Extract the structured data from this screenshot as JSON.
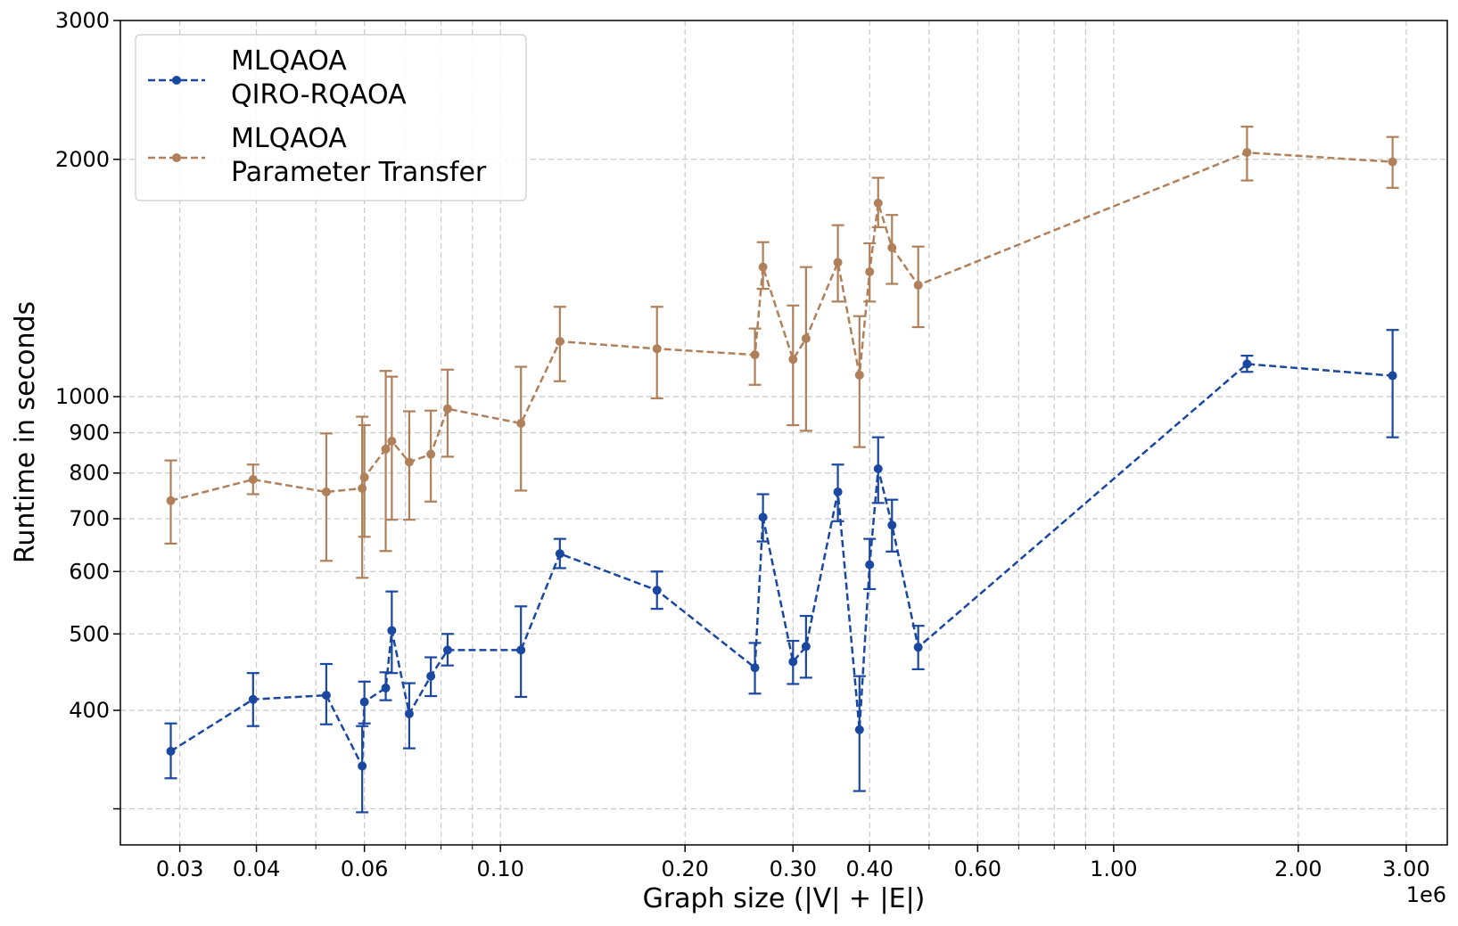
{
  "chart_data": {
    "type": "line",
    "xlabel": "Graph size (|V| + |E|)",
    "ylabel": "Runtime in seconds",
    "x_offset_label": "1e6",
    "xscale": "log",
    "yscale": "log",
    "xlim": [
      0.024,
      3.5
    ],
    "ylim": [
      270,
      3000
    ],
    "grid": true,
    "legend_position": "top-left",
    "x_ticks": [
      {
        "value": 0.03,
        "label": "0.03"
      },
      {
        "value": 0.04,
        "label": "0.04"
      },
      {
        "value": 0.06,
        "label": "0.06"
      },
      {
        "value": 0.1,
        "label": "0.10"
      },
      {
        "value": 0.2,
        "label": "0.20"
      },
      {
        "value": 0.3,
        "label": "0.30"
      },
      {
        "value": 0.4,
        "label": "0.40"
      },
      {
        "value": 0.6,
        "label": "0.60"
      },
      {
        "value": 1.0,
        "label": "1.00"
      },
      {
        "value": 2.0,
        "label": "2.00"
      },
      {
        "value": 3.0,
        "label": "3.00"
      }
    ],
    "x_minor_ticks": [
      0.05,
      0.07,
      0.08,
      0.09,
      0.5,
      0.7,
      0.8,
      0.9
    ],
    "y_ticks": [
      {
        "value": 300,
        "label": ""
      },
      {
        "value": 400,
        "label": "400"
      },
      {
        "value": 500,
        "label": "500"
      },
      {
        "value": 600,
        "label": "600"
      },
      {
        "value": 700,
        "label": "700"
      },
      {
        "value": 800,
        "label": "800"
      },
      {
        "value": 900,
        "label": "900"
      },
      {
        "value": 1000,
        "label": "1000"
      },
      {
        "value": 2000,
        "label": "2000"
      },
      {
        "value": 3000,
        "label": "3000"
      }
    ],
    "series": [
      {
        "legend_lines": [
          "MLQAOA",
          "QIRO-RQAOA"
        ],
        "color": "#1a47a0",
        "points": [
          {
            "x": 0.029,
            "y": 355,
            "lo": 328,
            "hi": 385
          },
          {
            "x": 0.0395,
            "y": 413,
            "lo": 382,
            "hi": 446
          },
          {
            "x": 0.052,
            "y": 418,
            "lo": 384,
            "hi": 458
          },
          {
            "x": 0.0595,
            "y": 340,
            "lo": 297,
            "hi": 382
          },
          {
            "x": 0.06,
            "y": 410,
            "lo": 385,
            "hi": 435
          },
          {
            "x": 0.065,
            "y": 427,
            "lo": 412,
            "hi": 447
          },
          {
            "x": 0.0665,
            "y": 505,
            "lo": 446,
            "hi": 566
          },
          {
            "x": 0.071,
            "y": 396,
            "lo": 358,
            "hi": 433
          },
          {
            "x": 0.077,
            "y": 442,
            "lo": 417,
            "hi": 467
          },
          {
            "x": 0.082,
            "y": 477,
            "lo": 456,
            "hi": 500
          },
          {
            "x": 0.108,
            "y": 477,
            "lo": 416,
            "hi": 542
          },
          {
            "x": 0.125,
            "y": 632,
            "lo": 606,
            "hi": 660
          },
          {
            "x": 0.18,
            "y": 568,
            "lo": 538,
            "hi": 600
          },
          {
            "x": 0.26,
            "y": 453,
            "lo": 420,
            "hi": 487
          },
          {
            "x": 0.268,
            "y": 703,
            "lo": 655,
            "hi": 752
          },
          {
            "x": 0.3,
            "y": 461,
            "lo": 432,
            "hi": 490
          },
          {
            "x": 0.315,
            "y": 482,
            "lo": 440,
            "hi": 527
          },
          {
            "x": 0.355,
            "y": 757,
            "lo": 695,
            "hi": 820
          },
          {
            "x": 0.385,
            "y": 378,
            "lo": 316,
            "hi": 442
          },
          {
            "x": 0.4,
            "y": 612,
            "lo": 570,
            "hi": 660
          },
          {
            "x": 0.413,
            "y": 810,
            "lo": 733,
            "hi": 888
          },
          {
            "x": 0.435,
            "y": 687,
            "lo": 636,
            "hi": 740
          },
          {
            "x": 0.48,
            "y": 481,
            "lo": 451,
            "hi": 512
          },
          {
            "x": 1.65,
            "y": 1100,
            "lo": 1075,
            "hi": 1127
          },
          {
            "x": 2.85,
            "y": 1063,
            "lo": 888,
            "hi": 1215
          }
        ]
      },
      {
        "legend_lines": [
          "MLQAOA",
          "Parameter Transfer"
        ],
        "color": "#b0805b",
        "points": [
          {
            "x": 0.029,
            "y": 738,
            "lo": 651,
            "hi": 830
          },
          {
            "x": 0.0395,
            "y": 785,
            "lo": 752,
            "hi": 820
          },
          {
            "x": 0.052,
            "y": 757,
            "lo": 619,
            "hi": 898
          },
          {
            "x": 0.0595,
            "y": 765,
            "lo": 589,
            "hi": 943
          },
          {
            "x": 0.06,
            "y": 790,
            "lo": 664,
            "hi": 920
          },
          {
            "x": 0.065,
            "y": 858,
            "lo": 637,
            "hi": 1078
          },
          {
            "x": 0.0665,
            "y": 878,
            "lo": 698,
            "hi": 1060
          },
          {
            "x": 0.071,
            "y": 826,
            "lo": 698,
            "hi": 958
          },
          {
            "x": 0.077,
            "y": 845,
            "lo": 736,
            "hi": 960
          },
          {
            "x": 0.082,
            "y": 965,
            "lo": 839,
            "hi": 1082
          },
          {
            "x": 0.108,
            "y": 925,
            "lo": 760,
            "hi": 1091
          },
          {
            "x": 0.125,
            "y": 1175,
            "lo": 1046,
            "hi": 1300
          },
          {
            "x": 0.18,
            "y": 1150,
            "lo": 995,
            "hi": 1300
          },
          {
            "x": 0.26,
            "y": 1130,
            "lo": 1035,
            "hi": 1220
          },
          {
            "x": 0.268,
            "y": 1460,
            "lo": 1370,
            "hi": 1570
          },
          {
            "x": 0.3,
            "y": 1115,
            "lo": 920,
            "hi": 1305
          },
          {
            "x": 0.315,
            "y": 1185,
            "lo": 905,
            "hi": 1460
          },
          {
            "x": 0.355,
            "y": 1480,
            "lo": 1320,
            "hi": 1650
          },
          {
            "x": 0.385,
            "y": 1065,
            "lo": 863,
            "hi": 1265
          },
          {
            "x": 0.4,
            "y": 1440,
            "lo": 1320,
            "hi": 1565
          },
          {
            "x": 0.413,
            "y": 1760,
            "lo": 1640,
            "hi": 1895
          },
          {
            "x": 0.435,
            "y": 1545,
            "lo": 1390,
            "hi": 1700
          },
          {
            "x": 0.48,
            "y": 1385,
            "lo": 1225,
            "hi": 1550
          },
          {
            "x": 1.65,
            "y": 2040,
            "lo": 1880,
            "hi": 2200
          },
          {
            "x": 2.85,
            "y": 1985,
            "lo": 1840,
            "hi": 2135
          }
        ]
      }
    ]
  }
}
